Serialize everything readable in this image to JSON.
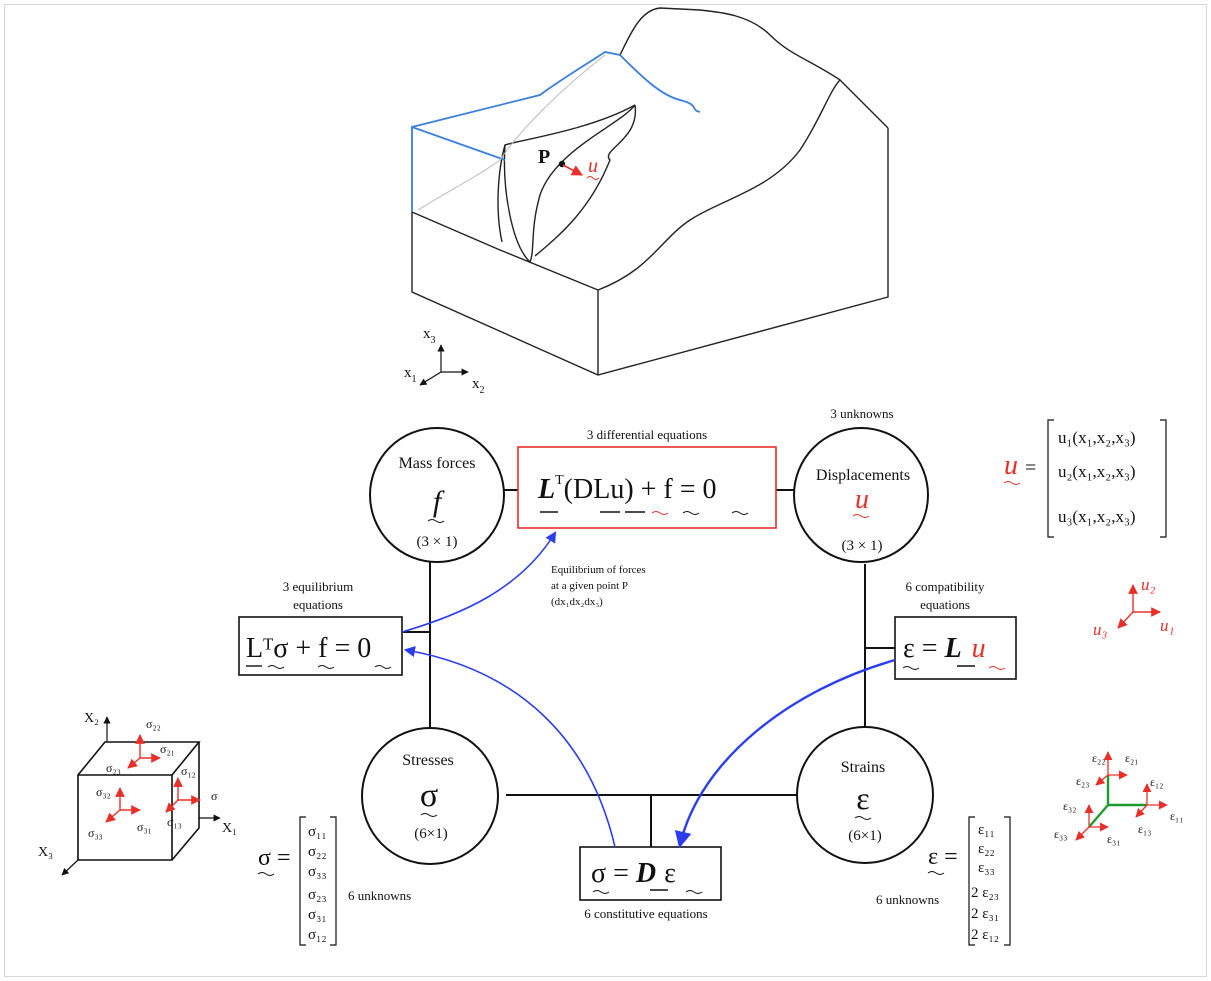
{
  "colors": {
    "ink": "#111111",
    "red": "#e8302a",
    "blue": "#2a3ef0",
    "slope_edge": "#3a7fe0",
    "green": "#1f9a2e"
  },
  "slope": {
    "point_label": "P",
    "disp_label": "u",
    "axes": {
      "x1": "x",
      "x1_sub": "1",
      "x2": "x",
      "x2_sub": "2",
      "x3": "x",
      "x3_sub": "3"
    }
  },
  "nodes": {
    "mass": {
      "title": "Mass forces",
      "symbol": "f",
      "dim": "(3 × 1)"
    },
    "disp": {
      "title": "Displacements",
      "symbol": "u",
      "dim": "(3 × 1)",
      "top_note": "3 unknowns"
    },
    "stress": {
      "title": "Stresses",
      "symbol": "σ",
      "dim": "(6×1)"
    },
    "strain": {
      "title": "Strains",
      "symbol": "ε",
      "dim": "(6×1)"
    }
  },
  "equations": {
    "differential": {
      "caption": "3 differential equations",
      "lhs1": "L",
      "sup": "T",
      "lhs2": "(DLu) + f = 0"
    },
    "equilibrium": {
      "caption1": "3 equilibrium",
      "caption2": "equations",
      "text": "Lᵀσ + f = 0"
    },
    "compat": {
      "caption1": "6 compatibility",
      "caption2": "equations",
      "lhs": "ε = ",
      "L": "L",
      "u": "u"
    },
    "constitutive": {
      "caption": "6 constitutive equations",
      "lhs": "σ = ",
      "D": "D",
      "rhs": "ε"
    }
  },
  "annotation": {
    "line1": "Equilibrium of forces",
    "line2": "at a given point P",
    "line3": "(dx₁dx₂dx₃)"
  },
  "u_vector": {
    "lhs": "u",
    "rows": [
      "u₁(x₁,x₂,x₃)",
      "u₂(x₁,x₂,x₃)",
      "u₃(x₁,x₂,x₃)"
    ],
    "axes": [
      "u₂",
      "u₃",
      "u₁"
    ]
  },
  "sigma_vector": {
    "lhs": "σ =",
    "rows": [
      "σ₁₁",
      "σ₂₂",
      "σ₃₃",
      "σ₂₃",
      "σ₃₁",
      "σ₁₂"
    ],
    "note": "6 unknowns"
  },
  "eps_vector": {
    "lhs": "ε =",
    "rows": [
      "ε₁₁",
      "ε₂₂",
      "ε₃₃",
      "2 ε₂₃",
      "2 ε₃₁",
      "2 ε₁₂"
    ],
    "note": "6 unknowns"
  },
  "cube": {
    "x1": "X₁",
    "x2": "X₂",
    "x3": "X₃",
    "labels": [
      "σ₂₂",
      "σ₂₁",
      "σ₂₃",
      "σ₁₂",
      "σ",
      "σ₃₂",
      "σ₁₃",
      "σ₃₃",
      "σ₃₁"
    ]
  },
  "strain_axes": {
    "labels": [
      "ε₂₂",
      "ε₂₁",
      "ε₂₃",
      "ε₁₂",
      "ε₃₂",
      "ε₁₁",
      "ε₃₃",
      "ε₃₁",
      "ε₁₃"
    ]
  }
}
